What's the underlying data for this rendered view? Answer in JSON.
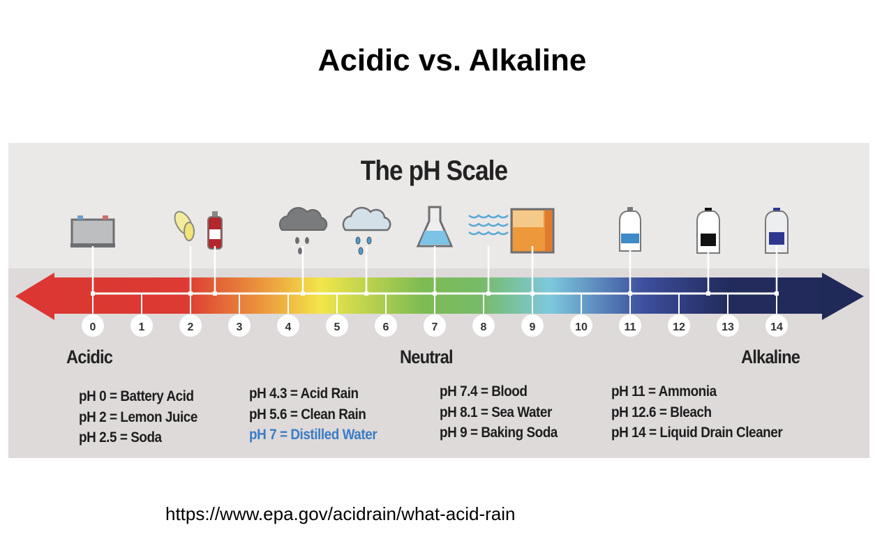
{
  "slide_title": "Acidic vs. Alkaline",
  "infographic": {
    "title": "The pH Scale",
    "ticks": [
      "0",
      "1",
      "2",
      "3",
      "4",
      "5",
      "6",
      "7",
      "8",
      "9",
      "10",
      "11",
      "12",
      "13",
      "14"
    ],
    "categories": {
      "acidic": "Acidic",
      "neutral": "Neutral",
      "alkaline": "Alkaline"
    },
    "markers": [
      {
        "ph": 0,
        "icon": "battery-icon"
      },
      {
        "ph": 2,
        "icon": "lemon-icon"
      },
      {
        "ph": 2.5,
        "icon": "soda-bottle-icon"
      },
      {
        "ph": 4.3,
        "icon": "acid-rain-cloud-icon"
      },
      {
        "ph": 5.6,
        "icon": "clean-rain-cloud-icon"
      },
      {
        "ph": 7,
        "icon": "flask-icon"
      },
      {
        "ph": 8.1,
        "icon": "sea-water-icon"
      },
      {
        "ph": 9,
        "icon": "baking-soda-box-icon"
      },
      {
        "ph": 11,
        "icon": "ammonia-bottle-icon"
      },
      {
        "ph": 12.6,
        "icon": "bleach-bottle-icon"
      },
      {
        "ph": 14,
        "icon": "drain-cleaner-bottle-icon"
      }
    ],
    "legend": [
      [
        "pH 0 = Battery Acid",
        "pH 2 = Lemon Juice",
        "pH 2.5 =  Soda"
      ],
      [
        "pH 4.3 = Acid Rain",
        "pH 5.6 = Clean Rain",
        "pH 7 = Distilled Water"
      ],
      [
        "pH 7.4 = Blood",
        "pH 8.1 =  Sea Water",
        "pH 9 = Baking Soda"
      ],
      [
        "pH 11 = Ammonia",
        "pH 12.6 = Bleach",
        "pH 14 = Liquid Drain Cleaner"
      ]
    ],
    "highlight_color": "#3b7cc6",
    "gradient_colors": [
      "#dc3632",
      "#e8823a",
      "#f2e64a",
      "#7dbb52",
      "#7ec8de",
      "#3a4c9c",
      "#202a58"
    ]
  },
  "source_url": "https://www.epa.gov/acidrain/what-acid-rain"
}
